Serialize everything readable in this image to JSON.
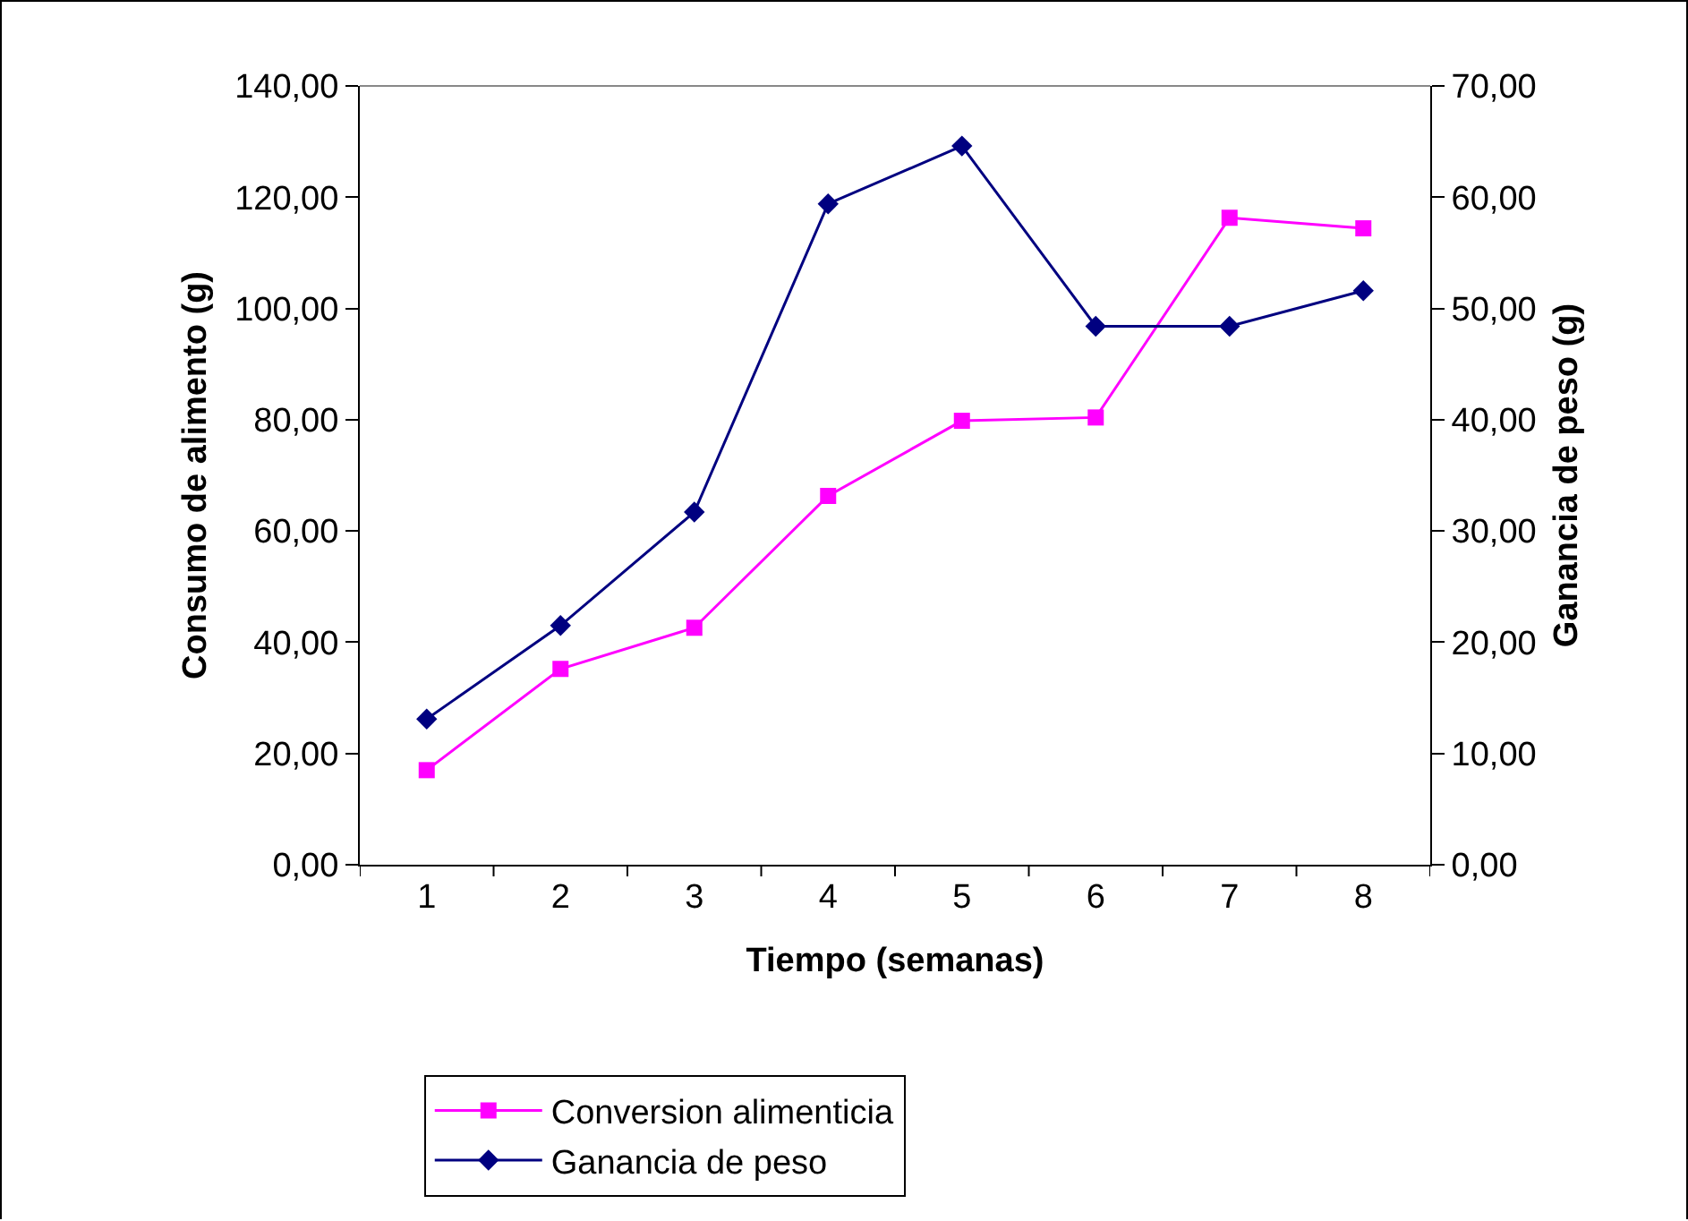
{
  "chart_data": {
    "type": "line",
    "xlabel": "Tiempo (semanas)",
    "ylabel": "Consumo de alimento (g)",
    "y2label": "Ganancia de peso (g)",
    "categories": [
      "1",
      "2",
      "3",
      "4",
      "5",
      "6",
      "7",
      "8"
    ],
    "series": [
      {
        "name": "Conversion alimenticia",
        "color": "#ff00ff",
        "marker": "square",
        "values": [
          17.0,
          35.2,
          42.6,
          66.3,
          79.8,
          80.4,
          116.3,
          114.4
        ]
      },
      {
        "name": "Ganancia de peso",
        "color": "#000080",
        "marker": "diamond",
        "axis": "y2",
        "values": [
          13.1,
          21.5,
          31.7,
          59.4,
          64.6,
          48.4,
          48.4,
          51.6
        ]
      }
    ],
    "ylim": [
      0,
      140
    ],
    "yticks": [
      {
        "value": 0,
        "label": "0,00"
      },
      {
        "value": 20,
        "label": "20,00"
      },
      {
        "value": 40,
        "label": "40,00"
      },
      {
        "value": 60,
        "label": "60,00"
      },
      {
        "value": 80,
        "label": "80,00"
      },
      {
        "value": 100,
        "label": "100,00"
      },
      {
        "value": 120,
        "label": "120,00"
      },
      {
        "value": 140,
        "label": "140,00"
      }
    ],
    "y2lim": [
      0,
      70
    ],
    "y2ticks": [
      {
        "value": 0,
        "label": "0,00"
      },
      {
        "value": 10,
        "label": "10,00"
      },
      {
        "value": 20,
        "label": "20,00"
      },
      {
        "value": 30,
        "label": "30,00"
      },
      {
        "value": 40,
        "label": "40,00"
      },
      {
        "value": 50,
        "label": "50,00"
      },
      {
        "value": 60,
        "label": "60,00"
      },
      {
        "value": 70,
        "label": "70,00"
      }
    ],
    "grid": false,
    "legend": "bottom",
    "line_style": "solid"
  }
}
